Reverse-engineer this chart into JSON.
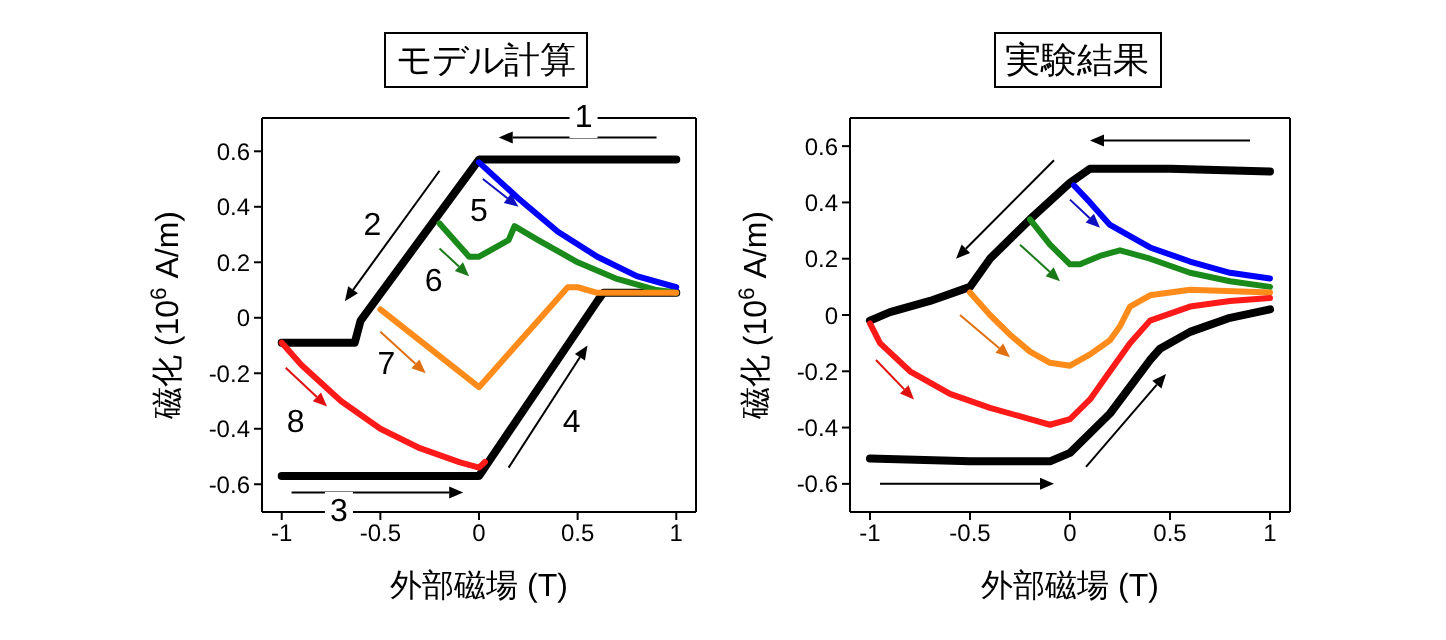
{
  "chart_data": [
    {
      "type": "line",
      "title": "モデル計算",
      "xlabel": "外部磁場 (T)",
      "ylabel": "磁化 (10$^{6}$ A/m)",
      "xlim": [
        -1.1,
        1.1
      ],
      "xticks": [
        -1,
        -0.5,
        0,
        0.5,
        1
      ],
      "ylim": [
        -0.7,
        0.72
      ],
      "yticks": [
        -0.6,
        -0.4,
        -0.2,
        0,
        0.2,
        0.4,
        0.6
      ],
      "marker": "none",
      "line_style": "solid",
      "series": [
        {
          "color": "#000000",
          "x": [
            1,
            0,
            -0.6,
            -0.63,
            -1
          ],
          "values": [
            0.57,
            0.57,
            -0.01,
            -0.09,
            -0.09
          ]
        },
        {
          "color": "#000000",
          "x": [
            -1,
            0,
            0.6,
            0.63,
            1
          ],
          "values": [
            -0.57,
            -0.57,
            0.06,
            0.09,
            0.09
          ]
        },
        {
          "color": "#0000ff",
          "x": [
            0,
            0.2,
            0.4,
            0.6,
            0.8,
            1
          ],
          "values": [
            0.56,
            0.43,
            0.31,
            0.22,
            0.15,
            0.11
          ]
        },
        {
          "color": "#1a8a1a",
          "x": [
            -0.2,
            -0.05,
            0,
            0.15,
            0.18,
            0.3,
            0.5,
            0.7,
            0.9,
            1
          ],
          "values": [
            0.34,
            0.22,
            0.22,
            0.28,
            0.33,
            0.28,
            0.2,
            0.14,
            0.1,
            0.09
          ]
        },
        {
          "color": "#ff8c1a",
          "x": [
            -0.5,
            0,
            0.45,
            0.5,
            0.6,
            1
          ],
          "values": [
            0.03,
            -0.25,
            0.11,
            0.11,
            0.09,
            0.09
          ]
        },
        {
          "color": "#ff1a1a",
          "x": [
            -1,
            -0.9,
            -0.7,
            -0.5,
            -0.3,
            -0.1,
            0,
            0.03
          ],
          "values": [
            -0.09,
            -0.17,
            -0.3,
            -0.4,
            -0.47,
            -0.52,
            -0.54,
            -0.52
          ]
        }
      ],
      "annotations": [
        "1",
        "2",
        "3",
        "4",
        "5",
        "6",
        "7",
        "8"
      ]
    },
    {
      "type": "line",
      "title": "実験結果",
      "xlabel": "外部磁場 (T)",
      "ylabel": "磁化 (10$^{6}$ A/m)",
      "xlim": [
        -1.1,
        1.1
      ],
      "xticks": [
        -1,
        -0.5,
        0,
        0.5,
        1
      ],
      "ylim": [
        -0.7,
        0.7
      ],
      "yticks": [
        -0.6,
        -0.4,
        -0.2,
        0,
        0.2,
        0.4,
        0.6
      ],
      "marker": "none",
      "line_style": "solid",
      "series": [
        {
          "color": "#000000",
          "x": [
            1,
            0.5,
            0.1,
            0,
            -0.2,
            -0.4,
            -0.5,
            -0.7,
            -0.9,
            -1
          ],
          "values": [
            0.51,
            0.52,
            0.52,
            0.47,
            0.34,
            0.2,
            0.1,
            0.05,
            0.01,
            -0.02
          ]
        },
        {
          "color": "#000000",
          "x": [
            -1,
            -0.5,
            -0.1,
            0,
            0.2,
            0.4,
            0.45,
            0.6,
            0.8,
            1
          ],
          "values": [
            -0.51,
            -0.52,
            -0.52,
            -0.49,
            -0.35,
            -0.16,
            -0.12,
            -0.06,
            -0.01,
            0.02
          ]
        },
        {
          "color": "#0000ff",
          "x": [
            0.02,
            0.1,
            0.2,
            0.4,
            0.6,
            0.8,
            1
          ],
          "values": [
            0.46,
            0.4,
            0.32,
            0.24,
            0.19,
            0.15,
            0.13
          ]
        },
        {
          "color": "#1a8a1a",
          "x": [
            -0.2,
            -0.1,
            0,
            0.05,
            0.15,
            0.25,
            0.4,
            0.6,
            0.8,
            1
          ],
          "values": [
            0.34,
            0.25,
            0.18,
            0.18,
            0.21,
            0.23,
            0.2,
            0.15,
            0.12,
            0.1
          ]
        },
        {
          "color": "#ff8c1a",
          "x": [
            -0.5,
            -0.4,
            -0.3,
            -0.2,
            -0.1,
            0,
            0.1,
            0.2,
            0.25,
            0.3,
            0.4,
            0.6,
            1
          ],
          "values": [
            0.08,
            0,
            -0.07,
            -0.13,
            -0.17,
            -0.18,
            -0.14,
            -0.09,
            -0.04,
            0.03,
            0.07,
            0.09,
            0.08
          ]
        },
        {
          "color": "#ff1a1a",
          "x": [
            -1,
            -0.95,
            -0.8,
            -0.6,
            -0.4,
            -0.2,
            -0.1,
            0,
            0.1,
            0.2,
            0.3,
            0.4,
            0.6,
            0.8,
            1
          ],
          "values": [
            -0.03,
            -0.1,
            -0.2,
            -0.28,
            -0.33,
            -0.37,
            -0.39,
            -0.37,
            -0.3,
            -0.2,
            -0.1,
            -0.02,
            0.03,
            0.05,
            0.06
          ]
        }
      ]
    }
  ]
}
